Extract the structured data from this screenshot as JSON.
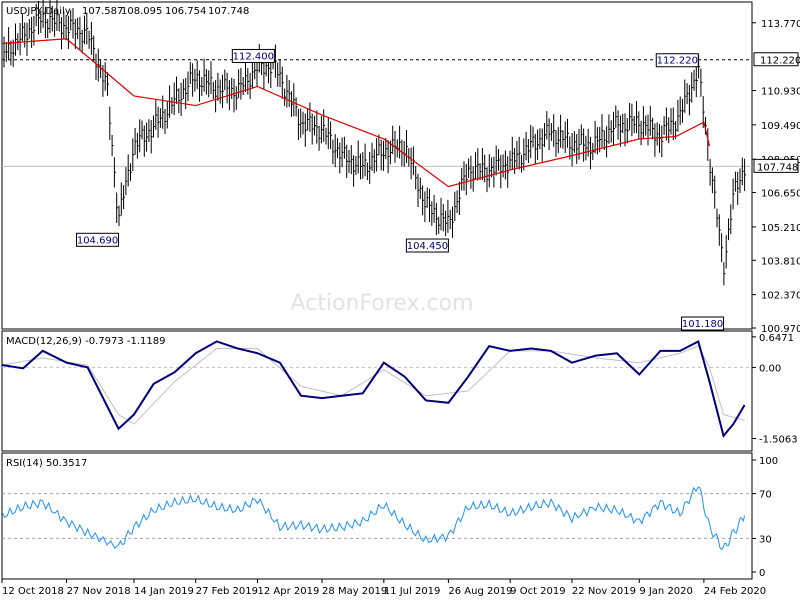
{
  "chart_data": [
    {
      "type": "ohlc",
      "panel": "price",
      "symbol": "USDJPY,Daily",
      "ohlc_readout": [
        "107.587",
        "108.095",
        "106.754",
        "107.748"
      ],
      "ylim": [
        100.97,
        114.6
      ],
      "yticks": [
        113.77,
        112.22,
        110.93,
        109.49,
        108.05,
        107.748,
        106.65,
        105.21,
        103.81,
        102.37,
        100.97
      ],
      "ytick_labels": [
        "113.770",
        "112.220",
        "110.930",
        "109.490",
        "108.050",
        "107.748",
        "106.650",
        "105.210",
        "103.810",
        "102.370",
        "100.970"
      ],
      "current_price": 107.748,
      "current_price_label": "107.748",
      "resistance_level": 112.22,
      "resistance_label": "112.220",
      "watermark": "ActionForex.com",
      "annotations": [
        {
          "label": "104.690",
          "date": "3 Jan 2019",
          "value": 104.69
        },
        {
          "label": "112.400",
          "date": "24 Apr 2019",
          "value": 112.4
        },
        {
          "label": "104.450",
          "date": "26 Aug 2019",
          "value": 104.45
        },
        {
          "label": "112.220",
          "date": "20 Feb 2020",
          "value": 112.22
        },
        {
          "label": "101.180",
          "date": "9 Mar 2020",
          "value": 101.18
        }
      ],
      "series": [
        {
          "name": "USDJPY",
          "kind": "close",
          "x": [
            "12 Oct 2018",
            "27 Oct 2018",
            "10 Nov 2018",
            "27 Nov 2018",
            "12 Dec 2018",
            "26 Dec 2018",
            "3 Jan 2019",
            "14 Jan 2019",
            "28 Jan 2019",
            "12 Feb 2019",
            "27 Feb 2019",
            "14 Mar 2019",
            "29 Mar 2019",
            "12 Apr 2019",
            "24 Apr 2019",
            "13 May 2019",
            "28 May 2019",
            "11 Jun 2019",
            "26 Jun 2019",
            "11 Jul 2019",
            "26 Jul 2019",
            "10 Aug 2019",
            "26 Aug 2019",
            "9 Sep 2019",
            "24 Sep 2019",
            "9 Oct 2019",
            "24 Oct 2019",
            "7 Nov 2019",
            "22 Nov 2019",
            "7 Dec 2019",
            "22 Dec 2019",
            "9 Jan 2020",
            "24 Jan 2020",
            "7 Feb 2020",
            "20 Feb 2020",
            "28 Feb 2020",
            "9 Mar 2020",
            "16 Mar 2020",
            "24 Mar 2020"
          ],
          "values": [
            112.4,
            113.2,
            114.0,
            113.6,
            113.3,
            111.0,
            105.5,
            108.6,
            109.4,
            110.5,
            111.5,
            111.0,
            110.9,
            111.9,
            112.0,
            109.6,
            109.3,
            108.2,
            107.7,
            108.4,
            108.6,
            106.1,
            105.3,
            107.6,
            107.6,
            107.9,
            108.6,
            109.2,
            108.7,
            108.6,
            109.4,
            109.6,
            109.0,
            109.9,
            111.8,
            108.1,
            103.5,
            106.5,
            107.748
          ]
        },
        {
          "name": "SMA",
          "kind": "moving_average",
          "color": "#dd0000",
          "x": [
            "12 Oct 2018",
            "27 Nov 2018",
            "14 Jan 2019",
            "27 Feb 2019",
            "12 Apr 2019",
            "28 May 2019",
            "11 Jul 2019",
            "26 Aug 2019",
            "9 Oct 2019",
            "22 Nov 2019",
            "9 Jan 2020",
            "4 Feb 2020",
            "24 Feb 2020",
            "28 Feb 2020"
          ],
          "values": [
            112.9,
            113.1,
            110.7,
            110.3,
            111.1,
            109.9,
            108.9,
            106.9,
            107.6,
            108.2,
            108.9,
            109.0,
            109.6,
            108.6
          ]
        }
      ],
      "x_tick_labels": [
        "12 Oct 2018",
        "27 Nov 2018",
        "14 Jan 2019",
        "27 Feb 2019",
        "12 Apr 2019",
        "28 May 2019",
        "11 Jul 2019",
        "26 Aug 2019",
        "9 Oct 2019",
        "22 Nov 2019",
        "9 Jan 2020",
        "24 Feb 2020"
      ]
    },
    {
      "type": "line",
      "panel": "macd",
      "title": "MACD(12,26,9) -0.7973 -1.1189",
      "ylim": [
        -1.75,
        0.75
      ],
      "yticks": [
        0.6471,
        0.0,
        -1.5063
      ],
      "ytick_labels": [
        "0.6471",
        "0.00",
        "-1.5063"
      ],
      "zero_line": true,
      "series": [
        {
          "name": "MACD",
          "color": "#00007f",
          "x": [
            "12 Oct 2018",
            "27 Oct 2018",
            "10 Nov 2018",
            "27 Nov 2018",
            "12 Dec 2018",
            "3 Jan 2019",
            "14 Jan 2019",
            "28 Jan 2019",
            "12 Feb 2019",
            "27 Feb 2019",
            "14 Mar 2019",
            "29 Mar 2019",
            "12 Apr 2019",
            "28 Apr 2019",
            "13 May 2019",
            "28 May 2019",
            "11 Jun 2019",
            "26 Jun 2019",
            "11 Jul 2019",
            "26 Jul 2019",
            "10 Aug 2019",
            "26 Aug 2019",
            "9 Sep 2019",
            "24 Sep 2019",
            "9 Oct 2019",
            "24 Oct 2019",
            "7 Nov 2019",
            "22 Nov 2019",
            "9 Dec 2019",
            "24 Dec 2019",
            "9 Jan 2020",
            "24 Jan 2020",
            "7 Feb 2020",
            "20 Feb 2020",
            "28 Feb 2020",
            "9 Mar 2020",
            "16 Mar 2020",
            "24 Mar 2020"
          ],
          "values": [
            0.05,
            -0.02,
            0.35,
            0.1,
            0.0,
            -1.3,
            -1.0,
            -0.35,
            -0.1,
            0.3,
            0.55,
            0.4,
            0.3,
            0.1,
            -0.6,
            -0.65,
            -0.6,
            -0.55,
            0.1,
            -0.2,
            -0.7,
            -0.75,
            -0.2,
            0.45,
            0.35,
            0.4,
            0.35,
            0.1,
            0.25,
            0.3,
            -0.15,
            0.35,
            0.35,
            0.55,
            -0.3,
            -1.45,
            -1.2,
            -0.7973
          ]
        },
        {
          "name": "Signal",
          "color": "#c0c0c0",
          "x": [
            "12 Oct 2018",
            "10 Nov 2018",
            "12 Dec 2018",
            "3 Jan 2019",
            "14 Jan 2019",
            "12 Feb 2019",
            "14 Mar 2019",
            "12 Apr 2019",
            "13 May 2019",
            "11 Jun 2019",
            "11 Jul 2019",
            "10 Aug 2019",
            "9 Sep 2019",
            "9 Oct 2019",
            "7 Nov 2019",
            "9 Dec 2019",
            "9 Jan 2020",
            "7 Feb 2020",
            "20 Feb 2020",
            "28 Feb 2020",
            "9 Mar 2020",
            "24 Mar 2020"
          ],
          "values": [
            0.05,
            0.2,
            0.05,
            -1.0,
            -1.2,
            -0.3,
            0.4,
            0.4,
            -0.4,
            -0.6,
            -0.05,
            -0.6,
            -0.5,
            0.35,
            0.35,
            0.2,
            0.1,
            0.3,
            0.45,
            0.0,
            -1.0,
            -1.1189
          ]
        }
      ]
    },
    {
      "type": "line",
      "panel": "rsi",
      "title": "RSI(14) 50.3517",
      "ylim": [
        0,
        100
      ],
      "yticks": [
        100,
        70,
        30,
        0
      ],
      "ytick_labels": [
        "100",
        "70",
        "30",
        "0"
      ],
      "levels": [
        70,
        30
      ],
      "series": [
        {
          "name": "RSI(14)",
          "color": "#1e90ff",
          "x": [
            "12 Oct 2018",
            "27 Oct 2018",
            "10 Nov 2018",
            "27 Nov 2018",
            "12 Dec 2018",
            "3 Jan 2019",
            "14 Jan 2019",
            "28 Jan 2019",
            "12 Feb 2019",
            "27 Feb 2019",
            "14 Mar 2019",
            "29 Mar 2019",
            "12 Apr 2019",
            "28 Apr 2019",
            "13 May 2019",
            "28 May 2019",
            "11 Jun 2019",
            "26 Jun 2019",
            "11 Jul 2019",
            "26 Jul 2019",
            "10 Aug 2019",
            "26 Aug 2019",
            "9 Sep 2019",
            "24 Sep 2019",
            "9 Oct 2019",
            "24 Oct 2019",
            "7 Nov 2019",
            "22 Nov 2019",
            "9 Dec 2019",
            "24 Dec 2019",
            "9 Jan 2020",
            "24 Jan 2020",
            "7 Feb 2020",
            "20 Feb 2020",
            "28 Feb 2020",
            "9 Mar 2020",
            "16 Mar 2020",
            "24 Mar 2020"
          ],
          "values": [
            50,
            58,
            62,
            45,
            35,
            22,
            40,
            55,
            62,
            65,
            58,
            55,
            65,
            40,
            42,
            38,
            40,
            45,
            60,
            42,
            28,
            32,
            58,
            60,
            52,
            58,
            62,
            48,
            58,
            55,
            45,
            62,
            52,
            78,
            40,
            20,
            35,
            50.3517
          ]
        }
      ]
    }
  ]
}
